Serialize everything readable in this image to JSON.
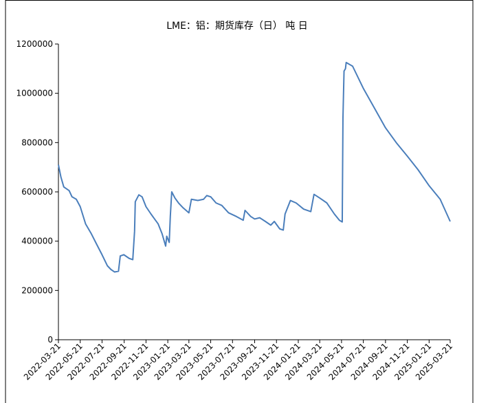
{
  "chart_data": {
    "type": "line",
    "title": "LME：铝：期货库存（日）  吨 日",
    "color": "#4a7ebb",
    "x": [
      "2022-03-21",
      "2022-03-28",
      "2022-04-05",
      "2022-04-20",
      "2022-04-28",
      "2022-05-10",
      "2022-05-21",
      "2022-06-05",
      "2022-06-21",
      "2022-07-05",
      "2022-07-21",
      "2022-08-05",
      "2022-08-15",
      "2022-08-25",
      "2022-09-05",
      "2022-09-10",
      "2022-09-20",
      "2022-10-05",
      "2022-10-15",
      "2022-10-20",
      "2022-10-22",
      "2022-11-01",
      "2022-11-10",
      "2022-11-21",
      "2022-12-05",
      "2022-12-15",
      "2022-12-25",
      "2023-01-05",
      "2023-01-15",
      "2023-01-18",
      "2023-01-25",
      "2023-01-28",
      "2023-02-01",
      "2023-02-10",
      "2023-02-20",
      "2023-03-05",
      "2023-03-21",
      "2023-03-28",
      "2023-04-15",
      "2023-05-01",
      "2023-05-10",
      "2023-05-21",
      "2023-06-05",
      "2023-06-21",
      "2023-07-10",
      "2023-08-01",
      "2023-08-20",
      "2023-08-25",
      "2023-09-10",
      "2023-09-21",
      "2023-10-05",
      "2023-10-21",
      "2023-11-05",
      "2023-11-15",
      "2023-11-30",
      "2023-12-10",
      "2023-12-15",
      "2023-12-30",
      "2024-01-15",
      "2024-02-05",
      "2024-02-25",
      "2024-03-05",
      "2024-03-21",
      "2024-04-10",
      "2024-05-01",
      "2024-05-15",
      "2024-05-23",
      "2024-05-25",
      "2024-05-28",
      "2024-06-01",
      "2024-06-03",
      "2024-06-21",
      "2024-07-21",
      "2024-08-21",
      "2024-09-21",
      "2024-10-21",
      "2024-11-21",
      "2024-12-21",
      "2025-01-21",
      "2025-02-21",
      "2025-03-21"
    ],
    "values": [
      710000,
      660000,
      620000,
      605000,
      580000,
      570000,
      540000,
      470000,
      430000,
      390000,
      345000,
      300000,
      285000,
      275000,
      278000,
      340000,
      345000,
      330000,
      325000,
      440000,
      560000,
      588000,
      580000,
      540000,
      510000,
      490000,
      470000,
      430000,
      380000,
      420000,
      395000,
      500000,
      600000,
      575000,
      555000,
      535000,
      515000,
      570000,
      565000,
      570000,
      585000,
      580000,
      555000,
      545000,
      515000,
      500000,
      485000,
      525000,
      500000,
      490000,
      495000,
      480000,
      465000,
      480000,
      450000,
      445000,
      510000,
      565000,
      555000,
      530000,
      520000,
      590000,
      575000,
      555000,
      510000,
      485000,
      478000,
      900000,
      1090000,
      1100000,
      1125000,
      1110000,
      1020000,
      940000,
      860000,
      800000,
      745000,
      690000,
      625000,
      570000,
      480000
    ],
    "xlim": [
      "2022-03-21",
      "2025-03-21"
    ],
    "xticks": [
      "2022-03-21",
      "2022-05-21",
      "2022-07-21",
      "2022-09-21",
      "2022-11-21",
      "2023-01-21",
      "2023-03-21",
      "2023-05-21",
      "2023-07-21",
      "2023-09-21",
      "2023-11-21",
      "2024-01-21",
      "2024-03-21",
      "2024-05-21",
      "2024-07-21",
      "2024-09-21",
      "2024-11-21",
      "2025-01-21",
      "2025-03-21"
    ],
    "ylim": [
      0,
      1200000
    ],
    "yticks": [
      0,
      200000,
      400000,
      600000,
      800000,
      1000000,
      1200000
    ]
  }
}
